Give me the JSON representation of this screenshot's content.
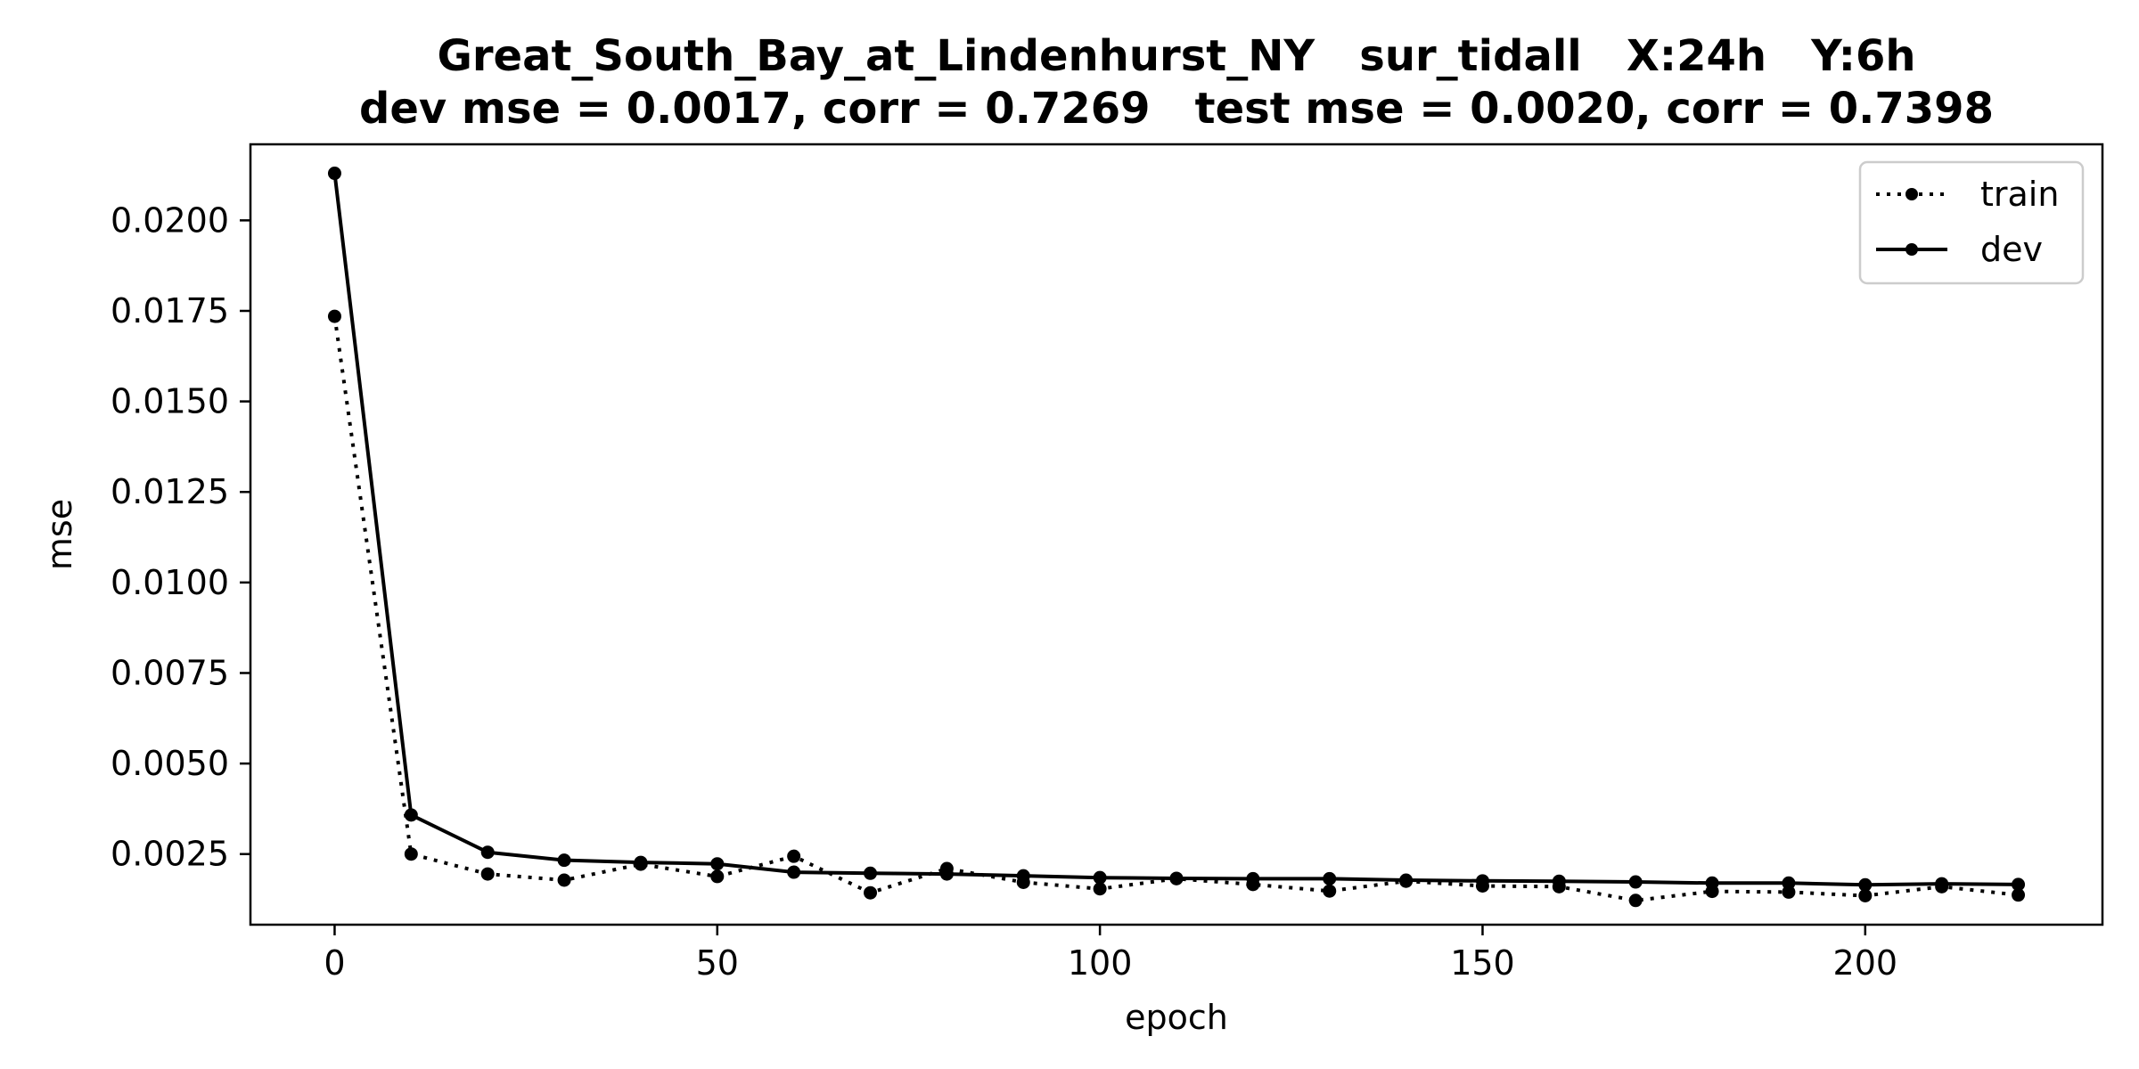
{
  "chart_data": {
    "type": "line",
    "title_line1": "Great_South_Bay_at_Lindenhurst_NY   sur_tidall   X:24h   Y:6h",
    "title_line2": "dev mse = 0.0017, corr = 0.7269   test mse = 0.0020, corr = 0.7398",
    "xlabel": "epoch",
    "ylabel": "mse",
    "xlim": [
      -11,
      231
    ],
    "ylim": [
      0.00055,
      0.0221
    ],
    "xticks": [
      0,
      50,
      100,
      150,
      200
    ],
    "yticks": [
      0.0025,
      0.005,
      0.0075,
      0.01,
      0.0125,
      0.015,
      0.0175,
      0.02
    ],
    "ytick_labels": [
      "0.0025",
      "0.0050",
      "0.0075",
      "0.0100",
      "0.0125",
      "0.0150",
      "0.0175",
      "0.0200"
    ],
    "grid": false,
    "legend_position": "top-right",
    "x": [
      0,
      10,
      20,
      30,
      40,
      50,
      60,
      70,
      80,
      90,
      100,
      110,
      120,
      130,
      140,
      150,
      160,
      170,
      180,
      190,
      200,
      210,
      220
    ],
    "series": [
      {
        "name": "train",
        "style": "dotted",
        "color": "#000000",
        "values": [
          0.01735,
          0.0025,
          0.00195,
          0.00178,
          0.00222,
          0.00188,
          0.00244,
          0.00143,
          0.0021,
          0.00172,
          0.00154,
          0.00182,
          0.00166,
          0.00148,
          0.00175,
          0.00162,
          0.0016,
          0.00122,
          0.00147,
          0.00145,
          0.00135,
          0.0016,
          0.00137
        ]
      },
      {
        "name": "dev",
        "style": "solid",
        "color": "#000000",
        "values": [
          0.0213,
          0.00358,
          0.00255,
          0.00233,
          0.00227,
          0.00223,
          0.002,
          0.00197,
          0.00195,
          0.0019,
          0.00185,
          0.00183,
          0.00182,
          0.00182,
          0.00178,
          0.00176,
          0.00175,
          0.00173,
          0.0017,
          0.0017,
          0.00165,
          0.00168,
          0.00166
        ]
      }
    ]
  }
}
